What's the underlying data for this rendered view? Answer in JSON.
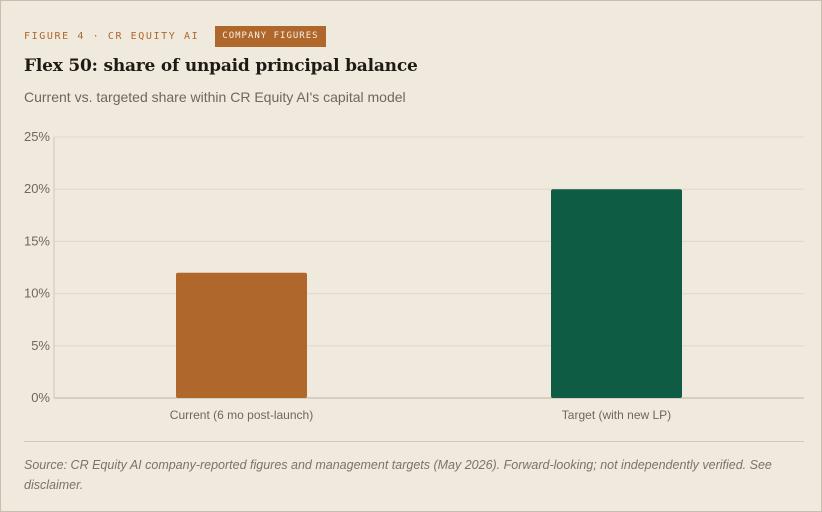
{
  "header": {
    "kicker": "FIGURE 4 · CR EQUITY AI",
    "tag": "COMPANY FIGURES",
    "title": "Flex 50: share of unpaid principal balance",
    "subtitle": "Current vs. targeted share within CR Equity AI's capital model"
  },
  "footer": {
    "source": "Source: CR Equity AI company-reported figures and management targets (May 2026). Forward-looking; not independently verified. See disclaimer."
  },
  "colors": {
    "background": "#f0e9dd",
    "accent": "#b0672b",
    "bar_current": "#b0672b",
    "bar_target": "#0d5c43",
    "gridline": "#e0d8cb"
  },
  "chart_data": {
    "type": "bar",
    "title": "Flex 50: share of unpaid principal balance",
    "xlabel": "",
    "ylabel": "",
    "categories": [
      "Current (6 mo post-launch)",
      "Target (with new LP)"
    ],
    "values": [
      12,
      20
    ],
    "bar_colors": [
      "#b0672b",
      "#0d5c43"
    ],
    "ylim": [
      0,
      25
    ],
    "yticks": [
      0,
      5,
      10,
      15,
      20,
      25
    ],
    "ytick_labels": [
      "0%",
      "5%",
      "10%",
      "15%",
      "20%",
      "25%"
    ],
    "grid": true,
    "legend": "none"
  }
}
